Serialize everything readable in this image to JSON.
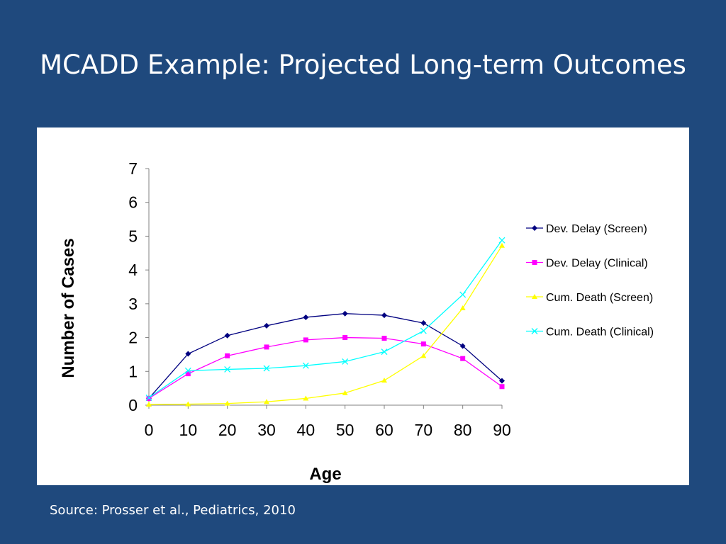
{
  "slide": {
    "title": "MCADD Example: Projected Long-term Outcomes",
    "source": "Source: Prosser et al., Pediatrics, 2010",
    "background_color": "#1f497d"
  },
  "chart_data": {
    "type": "line",
    "title": "",
    "xlabel": "Age",
    "ylabel": "Number of Cases",
    "x": [
      0,
      10,
      20,
      30,
      40,
      50,
      60,
      70,
      80,
      90
    ],
    "xlim": [
      0,
      90
    ],
    "ylim": [
      0,
      7
    ],
    "x_ticks": [
      "0",
      "10",
      "20",
      "30",
      "40",
      "50",
      "60",
      "70",
      "80",
      "90"
    ],
    "y_ticks": [
      "0",
      "1",
      "2",
      "3",
      "4",
      "5",
      "6",
      "7"
    ],
    "grid": false,
    "legend_position": "right",
    "series": [
      {
        "name": "Dev. Delay (Screen)",
        "color": "#000080",
        "marker": "diamond",
        "values": [
          0.2,
          1.52,
          2.06,
          2.35,
          2.6,
          2.71,
          2.66,
          2.43,
          1.75,
          0.72
        ]
      },
      {
        "name": "Dev. Delay (Clinical)",
        "color": "#ff00ff",
        "marker": "square",
        "values": [
          0.2,
          0.93,
          1.46,
          1.72,
          1.93,
          2.0,
          1.98,
          1.81,
          1.38,
          0.55
        ]
      },
      {
        "name": "Cum. Death (Screen)",
        "color": "#ffff00",
        "marker": "triangle",
        "values": [
          0.02,
          0.03,
          0.05,
          0.1,
          0.2,
          0.36,
          0.73,
          1.46,
          2.87,
          4.72
        ]
      },
      {
        "name": "Cum. Death (Clinical)",
        "color": "#00ffff",
        "marker": "x",
        "values": [
          0.22,
          1.02,
          1.06,
          1.09,
          1.17,
          1.29,
          1.58,
          2.2,
          3.27,
          4.88
        ]
      }
    ]
  }
}
